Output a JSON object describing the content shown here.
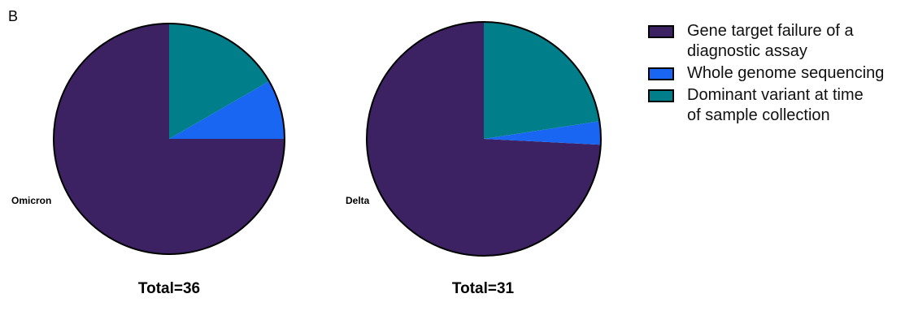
{
  "panel_label": "B",
  "colors": {
    "gene_target_failure": "#3c2163",
    "whole_genome_sequencing": "#1866f2",
    "dominant_variant": "#007f8a",
    "outline": "#000000"
  },
  "chart_data": [
    {
      "type": "pie",
      "name": "Omicron",
      "total_label": "Total=36",
      "slices": [
        {
          "label": "Gene target failure of a diagnostic assay",
          "value": 27,
          "color_key": "gene_target_failure"
        },
        {
          "label": "Whole genome sequencing",
          "value": 3,
          "color_key": "whole_genome_sequencing"
        },
        {
          "label": "Dominant variant at time of sample collection",
          "value": 6,
          "color_key": "dominant_variant"
        }
      ]
    },
    {
      "type": "pie",
      "name": "Delta",
      "total_label": "Total=31",
      "slices": [
        {
          "label": "Gene target failure of a diagnostic assay",
          "value": 23,
          "color_key": "gene_target_failure"
        },
        {
          "label": "Whole genome sequencing",
          "value": 1,
          "color_key": "whole_genome_sequencing"
        },
        {
          "label": "Dominant variant at time of sample collection",
          "value": 7,
          "color_key": "dominant_variant"
        }
      ]
    }
  ],
  "legend": [
    {
      "label": "Gene target failure of a\ndiagnostic assay",
      "color_key": "gene_target_failure"
    },
    {
      "label": "Whole genome sequencing",
      "color_key": "whole_genome_sequencing"
    },
    {
      "label": "Dominant variant at time\nof sample collection",
      "color_key": "dominant_variant"
    }
  ]
}
